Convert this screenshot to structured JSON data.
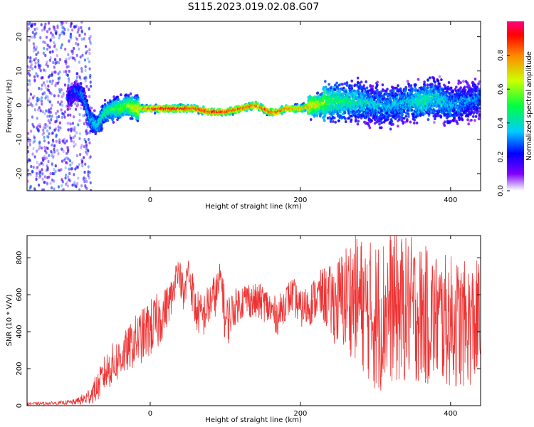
{
  "title": "S115.2023.019.02.08.G07",
  "chart_data": [
    {
      "type": "heatmap",
      "xlabel": "Height of straight line (km)",
      "ylabel": "Frequency (Hz)",
      "xlim": [
        -164,
        440
      ],
      "ylim": [
        -25,
        24.5
      ],
      "x_ticks": [
        0,
        200,
        400
      ],
      "y_ticks": [
        -20,
        -10,
        0,
        10,
        20
      ],
      "colorbar": {
        "label": "Normalized spectral amplitude",
        "range": [
          0.0,
          1.0
        ],
        "ticks": [
          0.0,
          0.2,
          0.4,
          0.6,
          0.8
        ],
        "colormap": "hsv-rainbow"
      },
      "ridge": {
        "x": [
          -110,
          -100,
          -90,
          -80,
          -70,
          -60,
          -50,
          -40,
          -30,
          -20,
          -10,
          0,
          20,
          40,
          60,
          80,
          100,
          120,
          140,
          160,
          170,
          180,
          200,
          220,
          240,
          260,
          280,
          300,
          320,
          340,
          360,
          380,
          400,
          420,
          440
        ],
        "freq": [
          2,
          4,
          3,
          -4,
          -6,
          -2,
          -1,
          -1,
          0,
          -1,
          -1,
          -1,
          -1,
          -1,
          -1,
          -2,
          -2,
          -1,
          0,
          -2,
          -2,
          -1,
          -1,
          0,
          1,
          1,
          1,
          0,
          0,
          1,
          1,
          2,
          0,
          1,
          2
        ],
        "amplitude": [
          0.2,
          0.25,
          0.3,
          0.35,
          0.4,
          0.45,
          0.5,
          0.55,
          0.6,
          0.7,
          0.8,
          0.9,
          0.95,
          0.95,
          0.9,
          0.95,
          0.9,
          0.9,
          0.85,
          0.9,
          0.9,
          0.85,
          0.8,
          0.7,
          0.5,
          0.45,
          0.4,
          0.35,
          0.35,
          0.35,
          0.45,
          0.4,
          0.35,
          0.3,
          0.3
        ]
      }
    },
    {
      "type": "line",
      "xlabel": "Height of straight line (km)",
      "ylabel": "SNR (10 * V/V)",
      "xlim": [
        -164,
        440
      ],
      "ylim": [
        0,
        920
      ],
      "x_ticks": [
        0,
        200,
        400
      ],
      "y_ticks": [
        0,
        200,
        400,
        600,
        800
      ],
      "color": "#ee3333",
      "series": [
        {
          "x": [
            -164,
            -140,
            -120,
            -100,
            -85,
            -70,
            -60,
            -50,
            -40,
            -30,
            -20,
            -10,
            0,
            10,
            20,
            30,
            35,
            40,
            45,
            50,
            55,
            60,
            70,
            80,
            90,
            95,
            100,
            110,
            120,
            130,
            140,
            150,
            160,
            170,
            180,
            190,
            200,
            210,
            220,
            230,
            240,
            250,
            260,
            270,
            280,
            290,
            300,
            310,
            320,
            330,
            340,
            350,
            360,
            370,
            380,
            390,
            400,
            410,
            420,
            430,
            440
          ],
          "values": [
            10,
            12,
            15,
            20,
            40,
            100,
            180,
            220,
            260,
            300,
            350,
            380,
            420,
            450,
            520,
            600,
            740,
            700,
            560,
            740,
            650,
            520,
            480,
            560,
            620,
            700,
            440,
            520,
            560,
            580,
            560,
            560,
            520,
            480,
            560,
            600,
            520,
            540,
            580,
            600,
            560,
            560,
            580,
            600,
            560,
            520,
            480,
            500,
            540,
            520,
            520,
            520,
            500,
            480,
            480,
            460,
            460,
            440,
            440,
            440,
            460
          ],
          "spread": [
            8,
            8,
            10,
            15,
            40,
            80,
            100,
            120,
            120,
            120,
            140,
            150,
            160,
            160,
            120,
            100,
            60,
            80,
            140,
            80,
            120,
            120,
            120,
            120,
            120,
            100,
            160,
            100,
            100,
            100,
            100,
            100,
            100,
            100,
            100,
            100,
            100,
            120,
            120,
            150,
            200,
            250,
            300,
            340,
            360,
            380,
            420,
            420,
            420,
            420,
            400,
            400,
            380,
            380,
            360,
            360,
            360,
            360,
            340,
            340,
            340
          ]
        }
      ]
    }
  ]
}
